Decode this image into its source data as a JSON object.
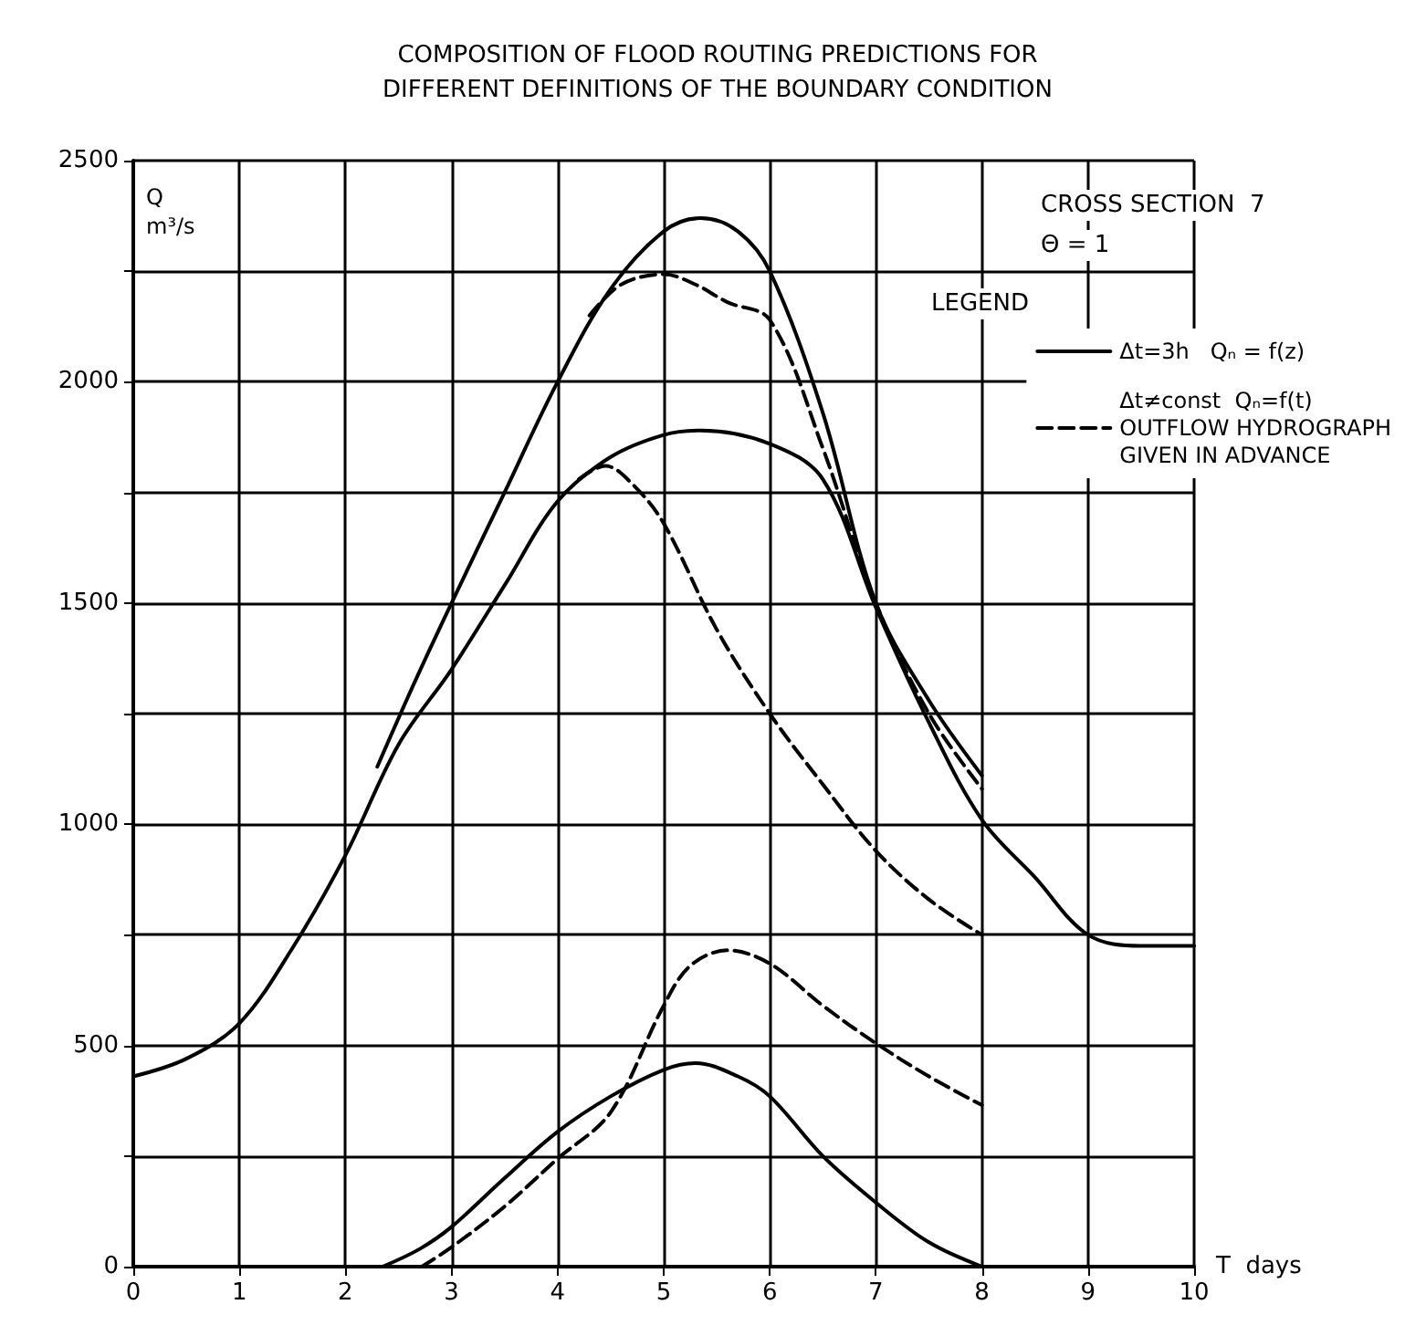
{
  "chart_data": {
    "type": "line",
    "title": "COMPOSITION OF FLOOD ROUTING PREDICTIONS FOR\nDIFFERENT DEFINITIONS OF THE BOUNDARY CONDITION",
    "xlabel": "T  days",
    "ylabel": "Q\nm³/s",
    "legend_title": "LEGEND",
    "annotations": [
      "CROSS SECTION  7",
      "Θ = 1"
    ],
    "xlim": [
      0,
      10
    ],
    "xticks": [
      0,
      1,
      2,
      3,
      4,
      5,
      6,
      7,
      8,
      9,
      10
    ],
    "ylim": [
      0,
      2500
    ],
    "yticks": [
      0,
      {
        "value": 250,
        "label": null
      },
      500,
      {
        "value": 750,
        "label": null
      },
      1000,
      {
        "value": 1250,
        "label": null
      },
      1500,
      {
        "value": 1750,
        "label": null
      },
      2000,
      {
        "value": 2250,
        "label": null
      },
      2500
    ],
    "grid": true,
    "legend": "top right",
    "marker": "none",
    "series": [
      {
        "name": "Δt=3h   Qₙ = f(z)",
        "color": "#000000",
        "line_style": "solid",
        "x": [
          0,
          0.5,
          1,
          1.5,
          2,
          2.5,
          3,
          3.5,
          4,
          4.5,
          5,
          5.35,
          6,
          6.5,
          7,
          7.5,
          8,
          8.5,
          9,
          9.5,
          10
        ],
        "values": [
          430,
          470,
          550,
          720,
          930,
          1180,
          1350,
          1540,
          1730,
          1830,
          1880,
          1890,
          1860,
          1780,
          1490,
          1230,
          1010,
          880,
          750,
          725,
          725
        ]
      },
      {
        "color": "#000000",
        "line_style": "solid",
        "x": [
          2.3,
          2.65,
          3,
          3.5,
          4,
          4.5,
          5,
          5.35,
          5.7,
          6,
          6.5,
          7,
          7.5,
          8
        ],
        "values": [
          1130,
          1320,
          1500,
          1750,
          2000,
          2210,
          2340,
          2370,
          2340,
          2250,
          1930,
          1500,
          1280,
          1110
        ]
      },
      {
        "name": "Δt≠const  Qₙ=f(t)\nOUTFLOW HYDROGRAPH\nGIVEN IN ADVANCE",
        "color": "#000000",
        "line_style": "dashed",
        "x": [
          4.3,
          4.6,
          5,
          5.3,
          5.6,
          6,
          6.5,
          7,
          7.5,
          8
        ],
        "values": [
          2150,
          2220,
          2243,
          2220,
          2180,
          2140,
          1850,
          1500,
          1250,
          1080
        ]
      },
      {
        "color": "#000000",
        "line_style": "dashed",
        "x": [
          4.2,
          4.45,
          4.7,
          5,
          5.5,
          6,
          6.5,
          7,
          7.5,
          8
        ],
        "values": [
          1780,
          1810,
          1770,
          1680,
          1440,
          1250,
          1090,
          940,
          830,
          750
        ]
      },
      {
        "color": "#000000",
        "line_style": "solid",
        "x": [
          2.35,
          2.7,
          3,
          3.5,
          4,
          4.5,
          5,
          5.3,
          5.7,
          6,
          6.5,
          7,
          7.5,
          8
        ],
        "values": [
          0,
          40,
          90,
          200,
          305,
          385,
          445,
          460,
          430,
          385,
          250,
          145,
          55,
          0
        ]
      },
      {
        "color": "#000000",
        "line_style": "dashed",
        "x": [
          2.72,
          3,
          3.5,
          4,
          4.5,
          5,
          5.25,
          5.6,
          6,
          6.5,
          7,
          7.5,
          8
        ],
        "values": [
          0,
          44,
          136,
          244,
          349,
          590,
          680,
          715,
          685,
          590,
          505,
          430,
          365
        ]
      }
    ]
  }
}
